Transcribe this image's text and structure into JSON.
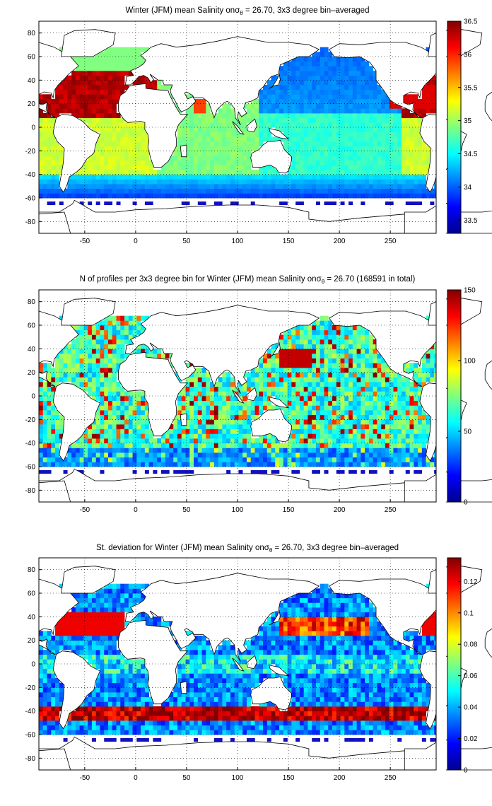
{
  "chart_data": [
    {
      "type": "heatmap",
      "title": "Winter (JFM) mean Salinity on",
      "title_sigma": "σ",
      "title_sub": "θ",
      "title_tail": " = 26.70, 3x3 degree bin–averaged",
      "xlim": [
        -95,
        295
      ],
      "ylim": [
        -90,
        90
      ],
      "x_ticks": [
        -50,
        0,
        50,
        100,
        150,
        200,
        250
      ],
      "y_ticks": [
        80,
        60,
        40,
        20,
        0,
        -20,
        -40,
        -60,
        -80
      ],
      "grid": true,
      "colorbar": {
        "min": 33.3,
        "max": 36.5,
        "ticks": [
          "36.5",
          "36",
          "35.5",
          "35",
          "34.5",
          "34",
          "33.5"
        ],
        "tick_values": [
          36.5,
          36,
          35.5,
          35,
          34.5,
          34,
          33.5
        ]
      },
      "field": "salinity"
    },
    {
      "type": "heatmap",
      "title": "N of profiles per 3x3 degree bin for Winter (JFM) mean Salinity on",
      "title_sigma": "σ",
      "title_sub": "θ",
      "title_tail": " = 26.70 (168591 in total)",
      "xlim": [
        -95,
        295
      ],
      "ylim": [
        -90,
        90
      ],
      "x_ticks": [
        -50,
        0,
        50,
        100,
        150,
        200,
        250
      ],
      "y_ticks": [
        80,
        60,
        40,
        20,
        0,
        -20,
        -40,
        -60,
        -80
      ],
      "grid": true,
      "colorbar": {
        "min": 0,
        "max": 150,
        "ticks": [
          "150",
          "100",
          "50",
          "0"
        ],
        "tick_values": [
          150,
          100,
          50,
          0
        ]
      },
      "field": "count"
    },
    {
      "type": "heatmap",
      "title": "St. deviation for Winter (JFM) mean Salinity on",
      "title_sigma": "σ",
      "title_sub": "θ",
      "title_tail": " = 26.70, 3x3 degree bin–averaged",
      "xlim": [
        -95,
        295
      ],
      "ylim": [
        -90,
        90
      ],
      "x_ticks": [
        -50,
        0,
        50,
        100,
        150,
        200,
        250
      ],
      "y_ticks": [
        80,
        60,
        40,
        20,
        0,
        -20,
        -40,
        -60,
        -80
      ],
      "grid": true,
      "colorbar": {
        "min": 0,
        "max": 0.135,
        "ticks": [
          "0.12",
          "0.1",
          "0.08",
          "0.06",
          "0.04",
          "0.02",
          "0"
        ],
        "tick_values": [
          0.12,
          0.1,
          0.08,
          0.06,
          0.04,
          0.02,
          0
        ]
      },
      "field": "stdev"
    }
  ]
}
